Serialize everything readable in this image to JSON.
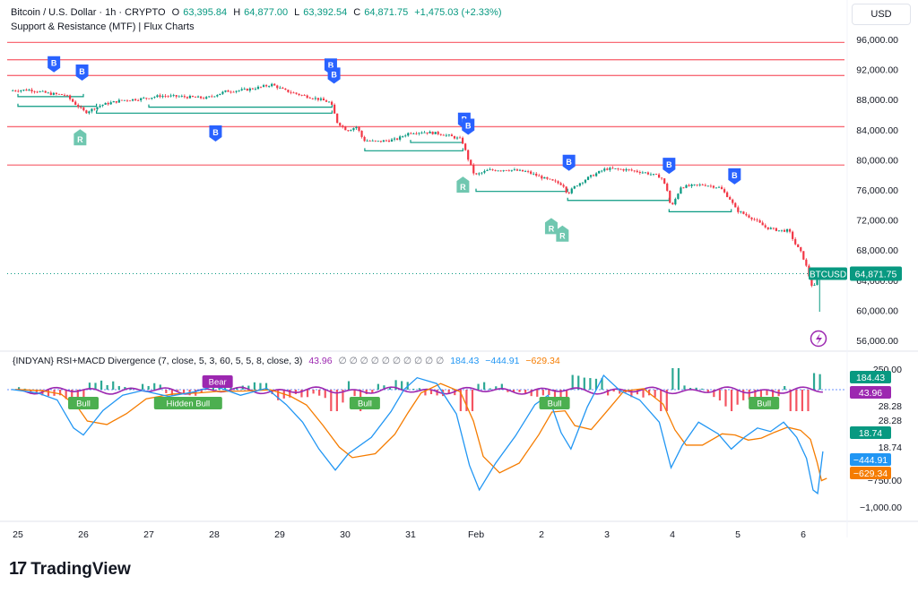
{
  "header": {
    "symbol": "Bitcoin / U.S. Dollar · 1h · CRYPTO",
    "open_label": "O",
    "open": "63,395.84",
    "high_label": "H",
    "high": "64,877.00",
    "low_label": "L",
    "low": "63,392.54",
    "close_label": "C",
    "close": "64,871.75",
    "change": "+1,475.03 (+2.33%)",
    "indicator": "Support & Resistance (MTF) | Flux Charts"
  },
  "currency_button": "USD",
  "price_tag": {
    "symbol": "BTCUSD",
    "value": "64,871.75"
  },
  "sub_indicator": {
    "title": "{INDYAN} RSI+MACD Divergence (7, close, 5, 3, 60, 5, 5, 8, close, 3)",
    "rsi_value": "43.96",
    "empty_values": "∅ ∅ ∅ ∅ ∅ ∅ ∅ ∅ ∅ ∅",
    "macd_value": "184.43",
    "signal_value": "−444.91",
    "hist_value": "−629.34",
    "scale_labels": [
      "250.00",
      "28.28",
      "28.28",
      "18.74",
      "−750.00",
      "−1,000.00"
    ],
    "tags": [
      {
        "label": "184.43",
        "color": "#089981",
        "value": 184.43
      },
      {
        "label": "43.96",
        "color": "#9c27b0",
        "value": 43.96
      },
      {
        "label": "18.74",
        "color": "#089981",
        "value": 18.74
      },
      {
        "label": "−444.91",
        "color": "#2196f3",
        "value": -444.91
      },
      {
        "label": "−629.34",
        "color": "#f57c00",
        "value": -629.34
      }
    ],
    "divergence_labels": [
      "Bull",
      "Hidden Bull",
      "Bear",
      "Bull",
      "Bull",
      "Bull"
    ]
  },
  "brand": "TradingView",
  "colors": {
    "up": "#089981",
    "down": "#f23645",
    "resistance": "#f7525f",
    "support": "#089981",
    "break": "#2962ff",
    "retest": "#70c7b0",
    "macd": "#2196f3",
    "signal": "#f57c00",
    "rsi": "#9c27b0"
  },
  "chart_data": {
    "type": "candlestick",
    "x_tick_labels": [
      "25",
      "26",
      "27",
      "28",
      "29",
      "30",
      "31",
      "Feb",
      "2",
      "3",
      "4",
      "5",
      "6"
    ],
    "y_tick_labels": [
      "96,000.00",
      "92,000.00",
      "88,000.00",
      "84,000.00",
      "80,000.00",
      "76,000.00",
      "72,000.00",
      "68,000.00",
      "64,000.00",
      "60,000.00",
      "56,000.00"
    ],
    "ylim": [
      55000,
      98500
    ],
    "last_price": 64871.75,
    "resistance_levels": [
      95600,
      93300,
      91200,
      84400,
      79300
    ],
    "support_segments": [
      {
        "from": 25.0,
        "to": 26.0,
        "price": 88400
      },
      {
        "from": 25.0,
        "to": 26.2,
        "price": 87100
      },
      {
        "from": 26.2,
        "to": 29.8,
        "price": 86200
      },
      {
        "from": 27.0,
        "to": 29.8,
        "price": 87000
      },
      {
        "from": 30.3,
        "to": 31.8,
        "price": 81200
      },
      {
        "from": 31.0,
        "to": 31.8,
        "price": 82300
      },
      {
        "from": 32.0,
        "to": 33.4,
        "price": 75800
      },
      {
        "from": 33.4,
        "to": 34.95,
        "price": 74600
      },
      {
        "from": 34.95,
        "to": 35.9,
        "price": 73100
      }
    ],
    "break_markers": [
      {
        "x": 25.55,
        "price": 92700
      },
      {
        "x": 25.98,
        "price": 91600
      },
      {
        "x": 28.02,
        "price": 83500
      },
      {
        "x": 29.78,
        "price": 92400
      },
      {
        "x": 29.83,
        "price": 91200
      },
      {
        "x": 31.82,
        "price": 85200
      },
      {
        "x": 31.88,
        "price": 84400
      },
      {
        "x": 33.42,
        "price": 79600
      },
      {
        "x": 34.95,
        "price": 79200
      },
      {
        "x": 35.95,
        "price": 77800
      }
    ],
    "retest_markers": [
      {
        "x": 25.95,
        "price": 83000
      },
      {
        "x": 31.8,
        "price": 76700
      },
      {
        "x": 33.15,
        "price": 71200
      },
      {
        "x": 33.32,
        "price": 70200
      }
    ],
    "price_path": [
      [
        24.9,
        89200
      ],
      [
        25.2,
        89300
      ],
      [
        25.5,
        88800
      ],
      [
        25.75,
        88600
      ],
      [
        25.9,
        87400
      ],
      [
        26.05,
        86300
      ],
      [
        26.3,
        87300
      ],
      [
        26.6,
        87900
      ],
      [
        26.9,
        88100
      ],
      [
        27.2,
        88500
      ],
      [
        27.5,
        88400
      ],
      [
        27.9,
        88200
      ],
      [
        28.2,
        89100
      ],
      [
        28.5,
        89300
      ],
      [
        28.75,
        89700
      ],
      [
        28.9,
        90000
      ],
      [
        29.1,
        89200
      ],
      [
        29.35,
        88600
      ],
      [
        29.6,
        88100
      ],
      [
        29.8,
        87600
      ],
      [
        29.9,
        85000
      ],
      [
        30.05,
        83900
      ],
      [
        30.2,
        84400
      ],
      [
        30.3,
        82600
      ],
      [
        30.5,
        82400
      ],
      [
        30.8,
        82700
      ],
      [
        31.0,
        83600
      ],
      [
        31.2,
        83700
      ],
      [
        31.45,
        83500
      ],
      [
        31.6,
        83200
      ],
      [
        31.8,
        82700
      ],
      [
        31.9,
        80100
      ],
      [
        32.0,
        77900
      ],
      [
        32.2,
        78600
      ],
      [
        32.5,
        78700
      ],
      [
        32.8,
        78400
      ],
      [
        33.1,
        77400
      ],
      [
        33.35,
        76700
      ],
      [
        33.42,
        75500
      ],
      [
        33.55,
        76600
      ],
      [
        33.75,
        77700
      ],
      [
        34.0,
        78800
      ],
      [
        34.3,
        78700
      ],
      [
        34.6,
        78300
      ],
      [
        34.85,
        77700
      ],
      [
        34.95,
        75800
      ],
      [
        35.0,
        73500
      ],
      [
        35.15,
        76400
      ],
      [
        35.5,
        76700
      ],
      [
        35.75,
        76300
      ],
      [
        35.9,
        74800
      ],
      [
        36.0,
        73300
      ],
      [
        36.25,
        72200
      ],
      [
        36.45,
        71000
      ],
      [
        36.65,
        70600
      ],
      [
        36.8,
        70600
      ],
      [
        36.9,
        68800
      ],
      [
        37.0,
        67500
      ],
      [
        37.08,
        65500
      ],
      [
        37.14,
        63500
      ],
      [
        37.18,
        62900
      ],
      [
        37.22,
        64000
      ],
      [
        37.3,
        64870
      ]
    ]
  }
}
